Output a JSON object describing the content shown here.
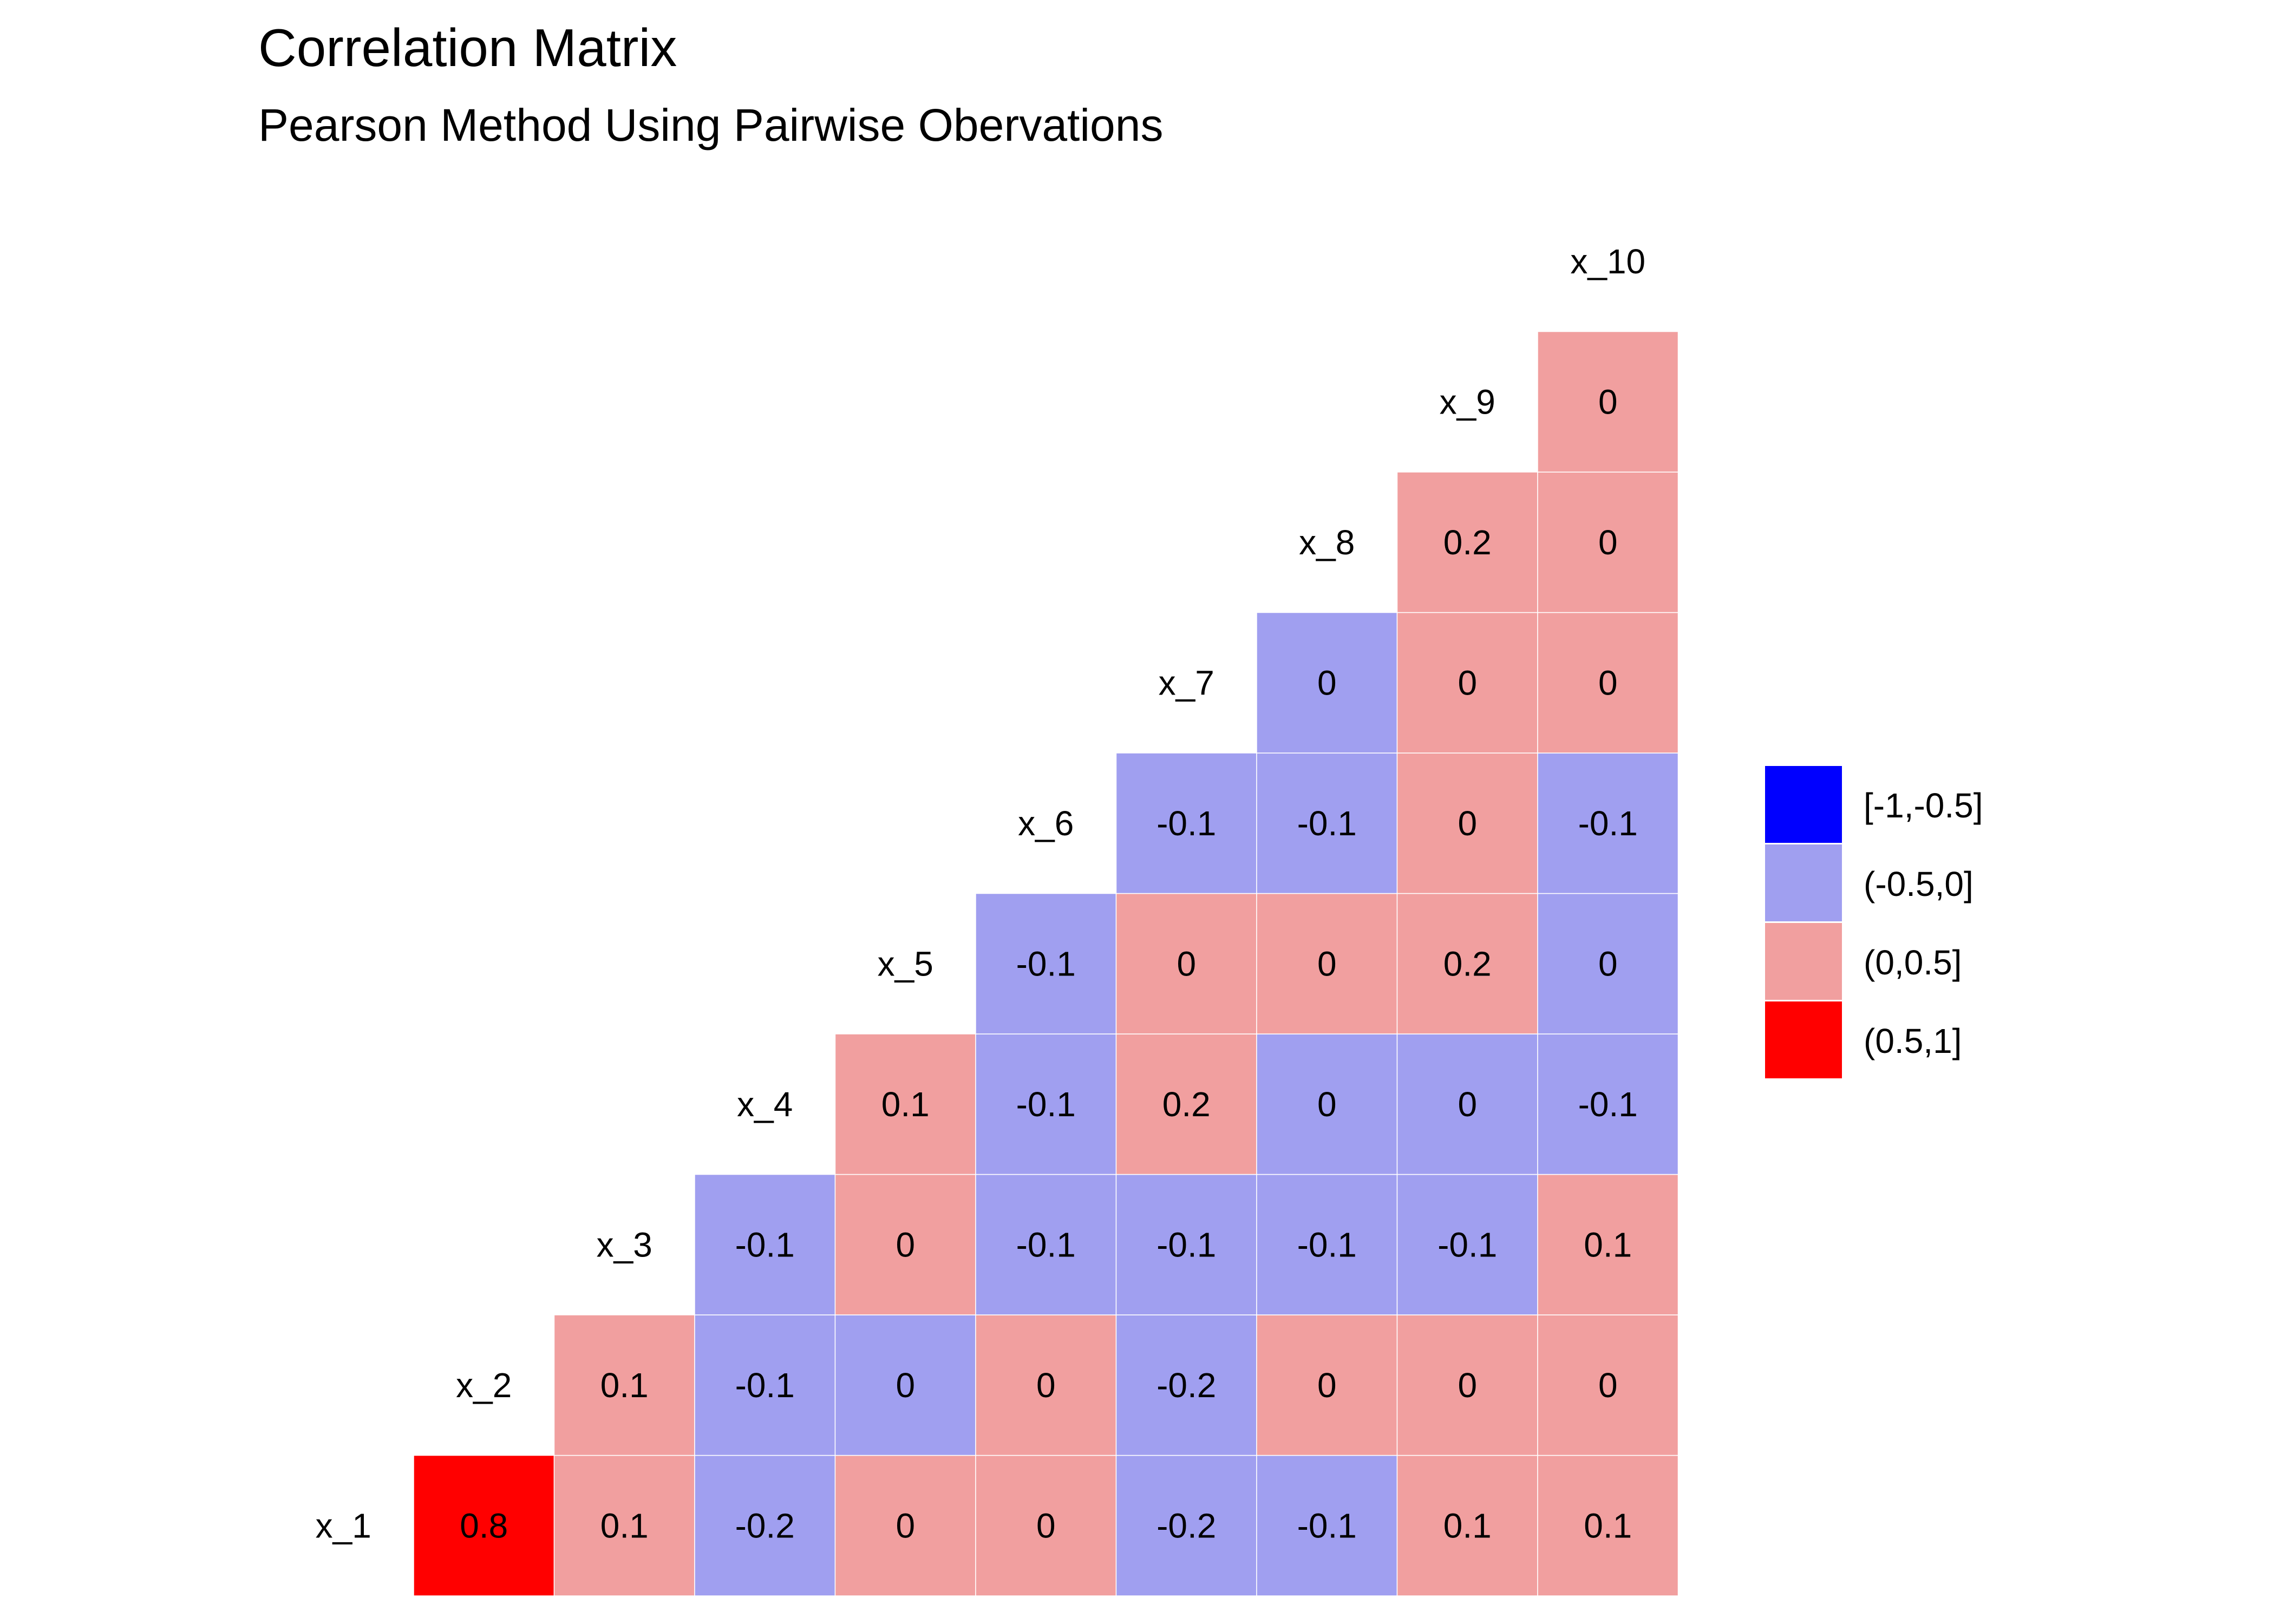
{
  "chart_data": {
    "type": "heatmap",
    "title": "Correlation Matrix",
    "subtitle": "Pearson Method Using Pairwise Obervations",
    "variables": [
      "x_1",
      "x_2",
      "x_3",
      "x_4",
      "x_5",
      "x_6",
      "x_7",
      "x_8",
      "x_9",
      "x_10"
    ],
    "cells": [
      {
        "row": "x_1",
        "col": "x_2",
        "value": 0.8
      },
      {
        "row": "x_1",
        "col": "x_3",
        "value": 0.1
      },
      {
        "row": "x_1",
        "col": "x_4",
        "value": -0.2
      },
      {
        "row": "x_1",
        "col": "x_5",
        "value": 0
      },
      {
        "row": "x_1",
        "col": "x_6",
        "value": 0
      },
      {
        "row": "x_1",
        "col": "x_7",
        "value": -0.2
      },
      {
        "row": "x_1",
        "col": "x_8",
        "value": -0.1
      },
      {
        "row": "x_1",
        "col": "x_9",
        "value": 0.1
      },
      {
        "row": "x_1",
        "col": "x_10",
        "value": 0.1
      },
      {
        "row": "x_2",
        "col": "x_3",
        "value": 0.1
      },
      {
        "row": "x_2",
        "col": "x_4",
        "value": -0.1
      },
      {
        "row": "x_2",
        "col": "x_5",
        "value": 0
      },
      {
        "row": "x_2",
        "col": "x_6",
        "value": 0
      },
      {
        "row": "x_2",
        "col": "x_7",
        "value": -0.2
      },
      {
        "row": "x_2",
        "col": "x_8",
        "value": 0
      },
      {
        "row": "x_2",
        "col": "x_9",
        "value": 0
      },
      {
        "row": "x_2",
        "col": "x_10",
        "value": 0
      },
      {
        "row": "x_3",
        "col": "x_4",
        "value": -0.1
      },
      {
        "row": "x_3",
        "col": "x_5",
        "value": 0
      },
      {
        "row": "x_3",
        "col": "x_6",
        "value": -0.1
      },
      {
        "row": "x_3",
        "col": "x_7",
        "value": -0.1
      },
      {
        "row": "x_3",
        "col": "x_8",
        "value": -0.1
      },
      {
        "row": "x_3",
        "col": "x_9",
        "value": -0.1
      },
      {
        "row": "x_3",
        "col": "x_10",
        "value": 0.1
      },
      {
        "row": "x_4",
        "col": "x_5",
        "value": 0.1
      },
      {
        "row": "x_4",
        "col": "x_6",
        "value": -0.1
      },
      {
        "row": "x_4",
        "col": "x_7",
        "value": 0.2
      },
      {
        "row": "x_4",
        "col": "x_8",
        "value": 0
      },
      {
        "row": "x_4",
        "col": "x_9",
        "value": 0
      },
      {
        "row": "x_4",
        "col": "x_10",
        "value": -0.1
      },
      {
        "row": "x_5",
        "col": "x_6",
        "value": -0.1
      },
      {
        "row": "x_5",
        "col": "x_7",
        "value": 0
      },
      {
        "row": "x_5",
        "col": "x_8",
        "value": 0
      },
      {
        "row": "x_5",
        "col": "x_9",
        "value": 0.2
      },
      {
        "row": "x_5",
        "col": "x_10",
        "value": 0
      },
      {
        "row": "x_6",
        "col": "x_7",
        "value": -0.1
      },
      {
        "row": "x_6",
        "col": "x_8",
        "value": -0.1
      },
      {
        "row": "x_6",
        "col": "x_9",
        "value": 0
      },
      {
        "row": "x_6",
        "col": "x_10",
        "value": -0.1
      },
      {
        "row": "x_7",
        "col": "x_8",
        "value": 0
      },
      {
        "row": "x_7",
        "col": "x_9",
        "value": 0
      },
      {
        "row": "x_7",
        "col": "x_10",
        "value": 0
      },
      {
        "row": "x_8",
        "col": "x_9",
        "value": 0.2
      },
      {
        "row": "x_8",
        "col": "x_10",
        "value": 0
      },
      {
        "row": "x_9",
        "col": "x_10",
        "value": 0
      }
    ],
    "cell_bins": [
      [
        "(0.5,1]",
        "(0,0.5]",
        "(-0.5,0]",
        "(0,0.5]",
        "(0,0.5]",
        "(-0.5,0]",
        "(-0.5,0]",
        "(0,0.5]",
        "(0,0.5]"
      ],
      [
        "(0,0.5]",
        "(-0.5,0]",
        "(-0.5,0]",
        "(0,0.5]",
        "(-0.5,0]",
        "(0,0.5]",
        "(0,0.5]",
        "(0,0.5]"
      ],
      [
        "(-0.5,0]",
        "(0,0.5]",
        "(-0.5,0]",
        "(-0.5,0]",
        "(-0.5,0]",
        "(-0.5,0]",
        "(0,0.5]"
      ],
      [
        "(0,0.5]",
        "(-0.5,0]",
        "(0,0.5]",
        "(-0.5,0]",
        "(-0.5,0]",
        "(-0.5,0]"
      ],
      [
        "(-0.5,0]",
        "(0,0.5]",
        "(0,0.5]",
        "(0,0.5]",
        "(-0.5,0]"
      ],
      [
        "(-0.5,0]",
        "(-0.5,0]",
        "(0,0.5]",
        "(-0.5,0]"
      ],
      [
        "(-0.5,0]",
        "(0,0.5]",
        "(0,0.5]"
      ],
      [
        "(0,0.5]",
        "(0,0.5]"
      ],
      [
        "(0,0.5]"
      ]
    ],
    "legend": [
      {
        "label": "[-1,-0.5]",
        "color": "#0000ff"
      },
      {
        "label": "(-0.5,0]",
        "color": "#a09ff0"
      },
      {
        "label": "(0,0.5]",
        "color": "#f19f9f"
      },
      {
        "label": "(0.5,1]",
        "color": "#ff0000"
      }
    ],
    "legend_position": "right",
    "grid": false
  }
}
